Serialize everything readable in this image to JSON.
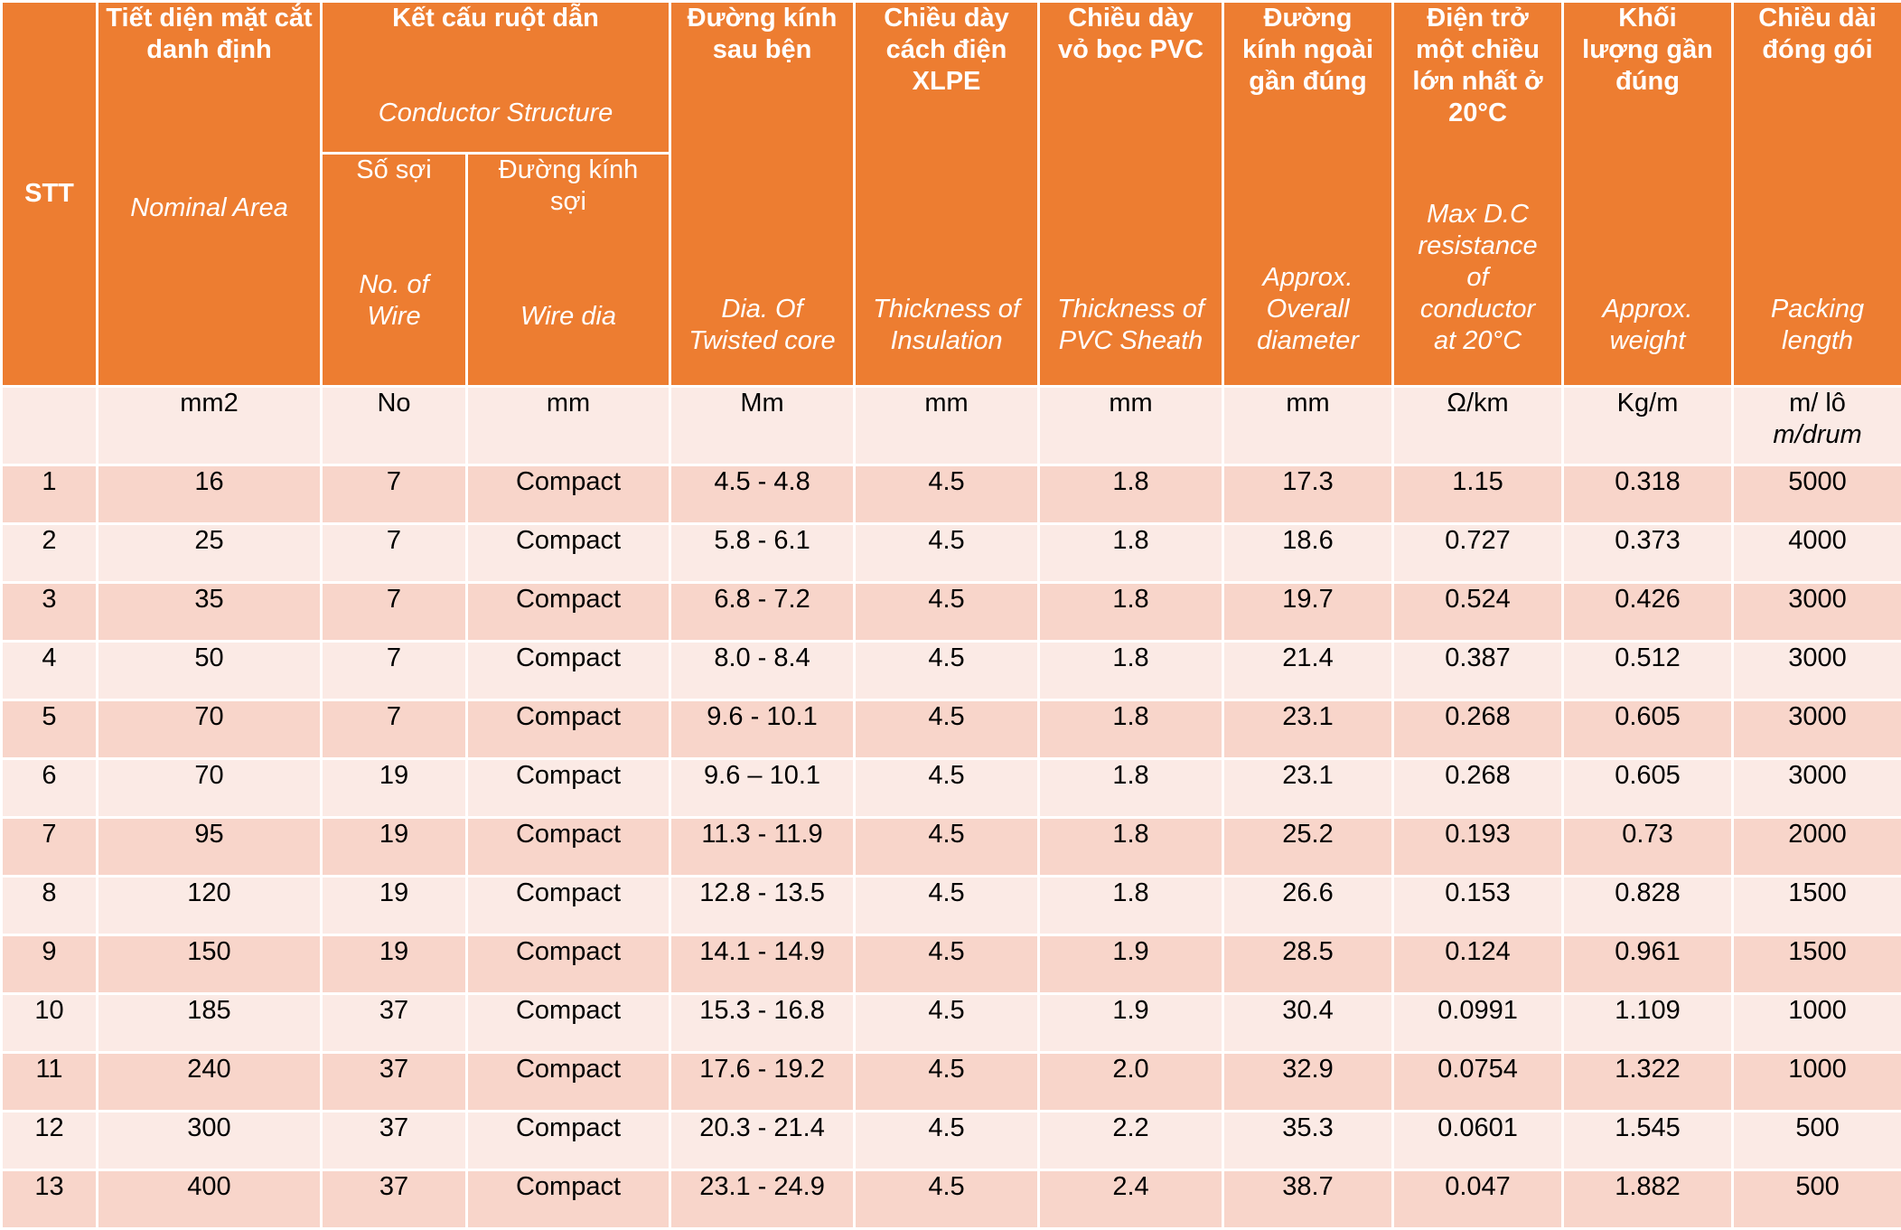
{
  "headers": {
    "stt": "STT",
    "nominal_area": {
      "vi": "Tiết diện mặt cắt danh định",
      "en": "Nominal Area"
    },
    "conductor_structure": {
      "vi": "Kết cấu ruột dẫn",
      "en": "Conductor Structure"
    },
    "no_of_wire": {
      "vi": "Số sợi",
      "en_1": "No. of",
      "en_2": "Wire"
    },
    "wire_dia": {
      "vi_1": "Đường kính",
      "vi_2": "sợi",
      "en": "Wire dia"
    },
    "twisted_core": {
      "vi_1": "Đường kính",
      "vi_2": "sau bện",
      "en_1": "Dia. Of",
      "en_2": "Twisted core"
    },
    "insulation": {
      "vi_1": "Chiều dày",
      "vi_2": "cách điện",
      "vi_3": "XLPE",
      "en_1": "Thickness of",
      "en_2": "Insulation"
    },
    "sheath": {
      "vi_1": "Chiều dày",
      "vi_2": "vỏ bọc PVC",
      "en_1": "Thickness of",
      "en_2": "PVC Sheath"
    },
    "overall_diameter": {
      "vi_1": "Đường",
      "vi_2": "kính ngoài",
      "vi_3": "gần đúng",
      "en_1": "Approx.",
      "en_2": "Overall",
      "en_3": "diameter"
    },
    "resistance": {
      "vi_1": "Điện trở",
      "vi_2": "một chiều",
      "vi_3": "lớn nhất ở",
      "vi_4": "20°C",
      "en_1": "Max D.C",
      "en_2": "resistance",
      "en_3": "of",
      "en_4": "conductor",
      "en_5": "at 20°C"
    },
    "weight": {
      "vi_1": "Khối",
      "vi_2": "lượng gần",
      "vi_3": "đúng",
      "en_1": "Approx.",
      "en_2": "weight"
    },
    "packing": {
      "vi_1": "Chiều dài",
      "vi_2": "đóng gói",
      "en_1": "Packing",
      "en_2": "length"
    }
  },
  "units": {
    "stt": "",
    "nominal_area": "mm2",
    "no_of_wire": "No",
    "wire_dia": "mm",
    "twisted_core": "Mm",
    "insulation": "mm",
    "sheath": "mm",
    "overall_diameter": "mm",
    "resistance": "Ω/km",
    "weight": "Kg/m",
    "packing_1": "m/ lô",
    "packing_2": "m/drum"
  },
  "rows": [
    [
      "1",
      "16",
      "7",
      "Compact",
      "4.5 - 4.8",
      "4.5",
      "1.8",
      "17.3",
      "1.15",
      "0.318",
      "5000"
    ],
    [
      "2",
      "25",
      "7",
      "Compact",
      "5.8 - 6.1",
      "4.5",
      "1.8",
      "18.6",
      "0.727",
      "0.373",
      "4000"
    ],
    [
      "3",
      "35",
      "7",
      "Compact",
      "6.8 - 7.2",
      "4.5",
      "1.8",
      "19.7",
      "0.524",
      "0.426",
      "3000"
    ],
    [
      "4",
      "50",
      "7",
      "Compact",
      "8.0 - 8.4",
      "4.5",
      "1.8",
      "21.4",
      "0.387",
      "0.512",
      "3000"
    ],
    [
      "5",
      "70",
      "7",
      "Compact",
      "9.6 - 10.1",
      "4.5",
      "1.8",
      "23.1",
      "0.268",
      "0.605",
      "3000"
    ],
    [
      "6",
      "70",
      "19",
      "Compact",
      "9.6 – 10.1",
      "4.5",
      "1.8",
      "23.1",
      "0.268",
      "0.605",
      "3000"
    ],
    [
      "7",
      "95",
      "19",
      "Compact",
      "11.3 - 11.9",
      "4.5",
      "1.8",
      "25.2",
      "0.193",
      "0.73",
      "2000"
    ],
    [
      "8",
      "120",
      "19",
      "Compact",
      "12.8 - 13.5",
      "4.5",
      "1.8",
      "26.6",
      "0.153",
      "0.828",
      "1500"
    ],
    [
      "9",
      "150",
      "19",
      "Compact",
      "14.1 - 14.9",
      "4.5",
      "1.9",
      "28.5",
      "0.124",
      "0.961",
      "1500"
    ],
    [
      "10",
      "185",
      "37",
      "Compact",
      "15.3 - 16.8",
      "4.5",
      "1.9",
      "30.4",
      "0.0991",
      "1.109",
      "1000"
    ],
    [
      "11",
      "240",
      "37",
      "Compact",
      "17.6 - 19.2",
      "4.5",
      "2.0",
      "32.9",
      "0.0754",
      "1.322",
      "1000"
    ],
    [
      "12",
      "300",
      "37",
      "Compact",
      "20.3 - 21.4",
      "4.5",
      "2.2",
      "35.3",
      "0.0601",
      "1.545",
      "500"
    ],
    [
      "13",
      "400",
      "37",
      "Compact",
      "23.1 - 24.9",
      "4.5",
      "2.4",
      "38.7",
      "0.047",
      "1.882",
      "500"
    ]
  ],
  "colors": {
    "header": "#ed7d31",
    "row_odd": "#f8d5ca",
    "row_even": "#fbeae5"
  }
}
